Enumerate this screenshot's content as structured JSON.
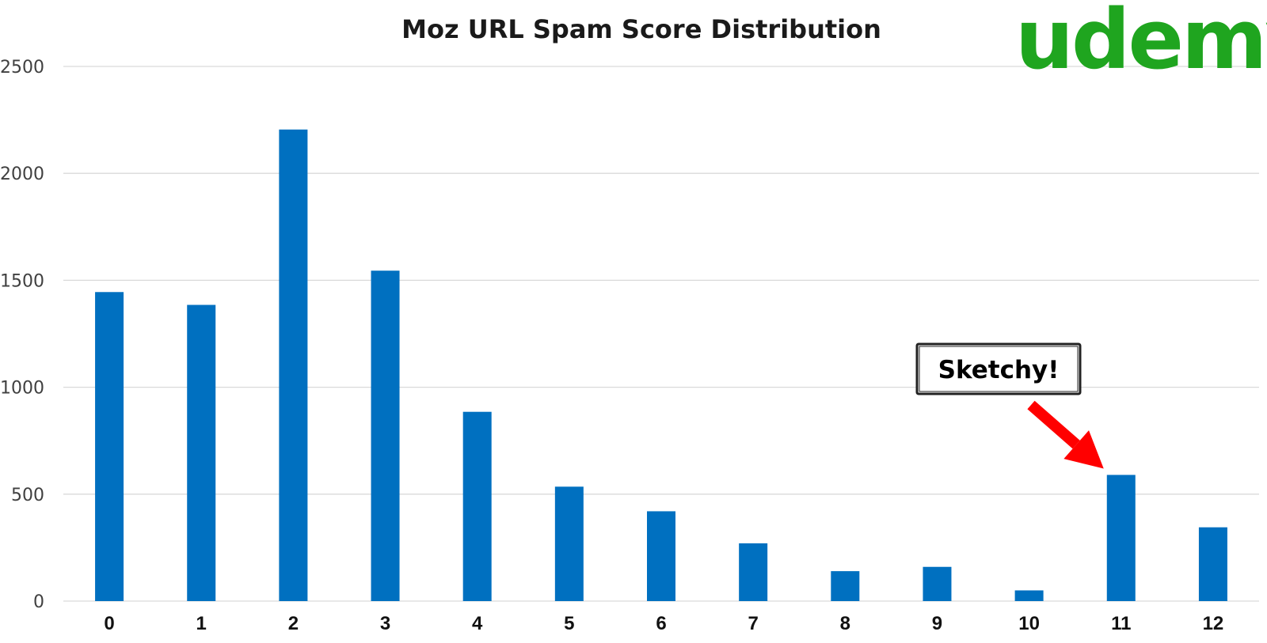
{
  "logo": {
    "text": "udemy",
    "color": "#1fa51f"
  },
  "chart_data": {
    "type": "bar",
    "title": "Moz URL Spam Score Distribution",
    "xlabel": "",
    "ylabel": "",
    "categories": [
      "0",
      "1",
      "2",
      "3",
      "4",
      "5",
      "6",
      "7",
      "8",
      "9",
      "10",
      "11",
      "12"
    ],
    "values": [
      1445,
      1385,
      2205,
      1545,
      885,
      535,
      420,
      270,
      140,
      160,
      50,
      590,
      345
    ],
    "ylim": [
      0,
      2500
    ],
    "yticks": [
      "0",
      "500",
      "1000",
      "1500",
      "2000",
      "2500"
    ],
    "grid": true,
    "legend": "none",
    "bar_color": "#0070c0",
    "annotation": {
      "text": "Sketchy!",
      "target_category": "11",
      "arrow_color": "#ff0000"
    }
  }
}
